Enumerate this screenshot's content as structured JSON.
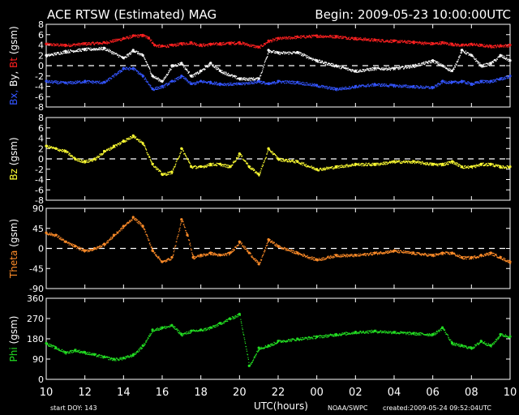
{
  "header": {
    "title": "ACE RTSW (Estimated) MAG",
    "begin": "Begin: 2009-05-23 10:00:00UTC"
  },
  "footer": {
    "start_doy": "start DOY:  143",
    "xlabel": "UTC(hours)",
    "agency": "NOAA/SWPC",
    "created": "created:2009-05-24 09:52:04UTC"
  },
  "colors": {
    "bx": "#3355ff",
    "by": "#ffffff",
    "bt": "#ff2020",
    "bz": "#ffff33",
    "theta": "#ff8c28",
    "phi": "#22dd22",
    "axes": "#ffffff"
  },
  "chart_data": [
    {
      "type": "scatter",
      "panel": "b",
      "ylabel_parts": [
        {
          "text": "Bx,",
          "color": "#3355ff"
        },
        {
          "text": "By,",
          "color": "#ffffff"
        },
        {
          "text": "Bt",
          "color": "#ff2020"
        },
        {
          "text": "(gsm)",
          "color": "#ffffff"
        }
      ],
      "ylim": [
        -8,
        8
      ],
      "yticks": [
        -8,
        -6,
        -4,
        -2,
        0,
        2,
        4,
        6,
        8
      ],
      "yticklabels": [
        "-8",
        "-6",
        "-4",
        "-2",
        "0",
        "2",
        "4",
        "6",
        "8"
      ],
      "zero_line": true,
      "series": [
        {
          "key": "bt",
          "color": "#ff2020",
          "x": [
            0,
            1,
            2,
            3,
            4,
            4.5,
            5,
            5.3,
            5.6,
            6,
            6.5,
            7,
            7.5,
            8,
            8.5,
            9,
            9.5,
            10,
            11,
            11.5,
            12,
            13,
            14,
            15,
            16,
            17,
            18,
            19,
            20,
            20.5,
            21,
            21.5,
            22,
            22.5,
            23,
            23.5,
            24
          ],
          "y": [
            4.2,
            4.0,
            4.3,
            4.5,
            5.3,
            5.8,
            5.9,
            5.4,
            4.0,
            3.8,
            4.0,
            4.3,
            4.5,
            4.0,
            4.2,
            4.3,
            4.4,
            4.5,
            3.6,
            4.8,
            5.3,
            5.6,
            5.8,
            5.7,
            5.3,
            5.0,
            4.8,
            4.6,
            4.3,
            4.5,
            4.2,
            4.0,
            4.2,
            4.0,
            3.8,
            3.9,
            4.0
          ]
        },
        {
          "key": "by",
          "color": "#ffffff",
          "x": [
            0,
            1,
            2,
            3,
            4,
            4.5,
            5,
            5.5,
            6,
            6.5,
            7,
            7.5,
            8,
            8.5,
            9,
            10,
            11,
            11.5,
            12,
            13,
            14,
            15,
            16,
            17,
            18,
            19,
            20,
            20.5,
            21,
            21.5,
            22,
            22.5,
            23,
            23.5,
            24
          ],
          "y": [
            2.0,
            2.8,
            3.2,
            3.4,
            1.5,
            3.0,
            2.0,
            -2.0,
            -3.0,
            0.0,
            0.5,
            -2.0,
            -1.0,
            0.5,
            -1.0,
            -2.5,
            -2.5,
            3.0,
            2.5,
            2.6,
            1.0,
            0.0,
            -1.0,
            -0.5,
            -0.5,
            0.0,
            1.0,
            0.0,
            -1.0,
            3.0,
            2.0,
            0.0,
            0.5,
            2.0,
            1.0
          ]
        },
        {
          "key": "bx",
          "color": "#3355ff",
          "x": [
            0,
            1,
            2,
            3,
            4,
            4.5,
            5,
            5.5,
            6,
            6.5,
            7,
            7.5,
            8,
            8.5,
            9,
            10,
            11,
            11.5,
            12,
            13,
            14,
            15,
            16,
            17,
            18,
            19,
            20,
            20.5,
            21,
            21.5,
            22,
            22.5,
            23,
            23.5,
            24
          ],
          "y": [
            -3.0,
            -3.3,
            -3.0,
            -3.2,
            -0.5,
            -0.5,
            -2.0,
            -4.5,
            -4.0,
            -3.0,
            -2.0,
            -3.5,
            -3.0,
            -3.2,
            -3.5,
            -3.5,
            -3.0,
            -3.5,
            -3.0,
            -3.2,
            -3.8,
            -4.5,
            -4.0,
            -3.6,
            -3.8,
            -4.0,
            -4.2,
            -3.0,
            -3.2,
            -3.0,
            -3.5,
            -3.0,
            -3.0,
            -2.5,
            -2.0
          ]
        }
      ]
    },
    {
      "type": "scatter",
      "panel": "bz",
      "ylabel_parts": [
        {
          "text": "Bz",
          "color": "#ffff33"
        },
        {
          "text": "(gsm)",
          "color": "#ffffff"
        }
      ],
      "ylim": [
        -8,
        8
      ],
      "yticks": [
        -8,
        -6,
        -4,
        -2,
        0,
        2,
        4,
        6,
        8
      ],
      "yticklabels": [
        "-8",
        "-6",
        "-4",
        "-2",
        "0",
        "2",
        "4",
        "6",
        "8"
      ],
      "zero_line": true,
      "series": [
        {
          "key": "bz",
          "color": "#ffff33",
          "x": [
            0,
            0.5,
            1,
            1.5,
            2,
            2.5,
            3,
            3.5,
            4,
            4.5,
            5,
            5.5,
            6,
            6.5,
            7,
            7.5,
            8,
            8.5,
            9,
            9.5,
            10,
            10.5,
            11,
            11.5,
            12,
            13,
            14,
            15,
            16,
            17,
            18,
            19,
            20,
            20.5,
            21,
            21.5,
            22,
            22.5,
            23,
            23.5,
            24
          ],
          "y": [
            2.5,
            2.0,
            1.5,
            0.0,
            -0.5,
            0.0,
            1.5,
            2.5,
            3.5,
            4.5,
            3.0,
            -1.0,
            -3.0,
            -2.5,
            2.0,
            -1.5,
            -1.5,
            -1.0,
            -1.0,
            -1.5,
            1.0,
            -1.5,
            -3.0,
            2.0,
            0.0,
            -0.5,
            -2.0,
            -1.5,
            -1.0,
            -1.0,
            -0.5,
            -0.5,
            -1.0,
            -1.0,
            -0.5,
            -1.5,
            -1.5,
            -1.0,
            -1.0,
            -1.5,
            -1.5
          ]
        }
      ]
    },
    {
      "type": "scatter",
      "panel": "theta",
      "ylabel_parts": [
        {
          "text": "Theta",
          "color": "#ff8c28"
        },
        {
          "text": "(gsm)",
          "color": "#ffffff"
        }
      ],
      "ylim": [
        -90,
        90
      ],
      "yticks": [
        -90,
        -45,
        0,
        45,
        90
      ],
      "yticklabels": [
        "-90",
        "-45",
        "0",
        "45",
        "90"
      ],
      "zero_line": true,
      "series": [
        {
          "key": "theta",
          "color": "#ff8c28",
          "x": [
            0,
            0.5,
            1,
            1.5,
            2,
            2.5,
            3,
            3.5,
            4,
            4.5,
            5,
            5.5,
            6,
            6.5,
            7,
            7.3,
            7.6,
            8,
            8.5,
            9,
            9.5,
            10,
            10.5,
            11,
            11.5,
            12,
            13,
            14,
            15,
            16,
            17,
            18,
            19,
            20,
            20.5,
            21,
            21.5,
            22,
            22.5,
            23,
            23.5,
            24
          ],
          "y": [
            35,
            30,
            15,
            5,
            -5,
            0,
            10,
            30,
            50,
            70,
            50,
            -5,
            -30,
            -20,
            65,
            30,
            -20,
            -15,
            -10,
            -15,
            -10,
            15,
            -10,
            -35,
            20,
            5,
            -10,
            -25,
            -15,
            -15,
            -10,
            -5,
            -10,
            -15,
            -10,
            -10,
            -20,
            -20,
            -15,
            -10,
            -20,
            -30
          ]
        }
      ]
    },
    {
      "type": "scatter",
      "panel": "phi",
      "ylabel_parts": [
        {
          "text": "Phi",
          "color": "#22dd22"
        },
        {
          "text": "(gsm)",
          "color": "#ffffff"
        }
      ],
      "ylim": [
        0,
        360
      ],
      "yticks": [
        0,
        90,
        180,
        270,
        360
      ],
      "yticklabels": [
        "0",
        "90",
        "180",
        "270",
        "360"
      ],
      "zero_line": false,
      "series": [
        {
          "key": "phi",
          "color": "#22dd22",
          "x": [
            0,
            0.5,
            1,
            1.5,
            2,
            2.5,
            3,
            3.5,
            4,
            4.5,
            5,
            5.5,
            6,
            6.5,
            7,
            7.5,
            8,
            8.5,
            9,
            9.5,
            10,
            10.5,
            11,
            11.5,
            12,
            13,
            14,
            15,
            16,
            17,
            18,
            19,
            20,
            20.5,
            21,
            21.5,
            22,
            22.5,
            23,
            23.5,
            24
          ],
          "y": [
            160,
            140,
            120,
            130,
            120,
            110,
            100,
            90,
            95,
            110,
            150,
            220,
            230,
            240,
            200,
            215,
            220,
            230,
            250,
            270,
            290,
            60,
            140,
            150,
            170,
            180,
            190,
            200,
            210,
            215,
            210,
            205,
            200,
            230,
            160,
            150,
            140,
            170,
            150,
            200,
            190
          ]
        }
      ]
    }
  ],
  "x_axis": {
    "xlim": [
      0,
      24
    ],
    "ticks": [
      0,
      2,
      4,
      6,
      8,
      10,
      12,
      14,
      16,
      18,
      20,
      22,
      24
    ],
    "ticklabels": [
      "10",
      "12",
      "14",
      "16",
      "18",
      "20",
      "22",
      "00",
      "02",
      "04",
      "06",
      "08",
      "10"
    ]
  }
}
